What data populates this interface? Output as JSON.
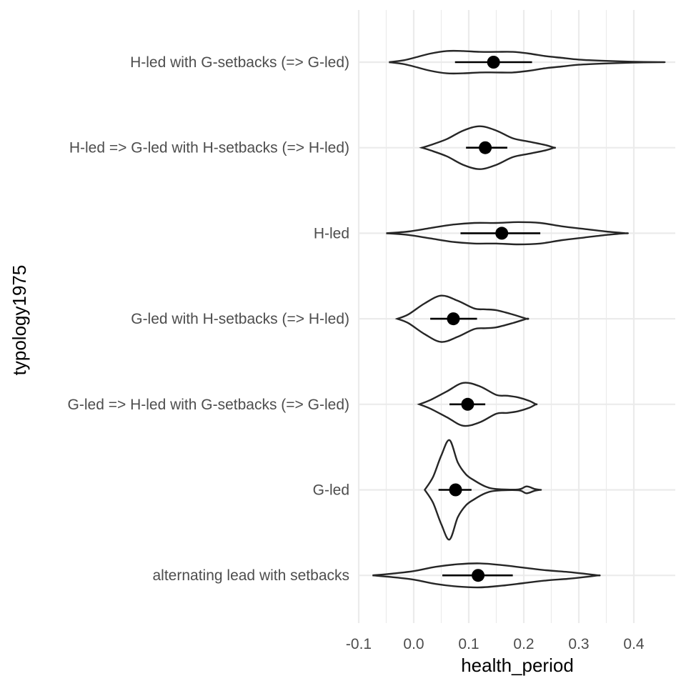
{
  "chart_data": {
    "type": "violin",
    "xlabel": "health_period",
    "ylabel": "typology1975",
    "xlim": [
      -0.1,
      0.45
    ],
    "x_ticks": [
      -0.1,
      0.0,
      0.1,
      0.2,
      0.3,
      0.4
    ],
    "x_tick_labels": [
      "-0.1",
      "0.0",
      "0.1",
      "0.2",
      "0.3",
      "0.4"
    ],
    "grid": true,
    "colors": {
      "outline": "#262626",
      "point": "#000000",
      "grid": "#ebebeb"
    },
    "categories": [
      {
        "label": "H-led with G-setbacks (=> G-led)",
        "mean": 0.145,
        "ci": [
          0.075,
          0.215
        ],
        "range": [
          -0.045,
          0.45
        ],
        "profile": [
          [
            -0.045,
            0.0
          ],
          [
            -0.02,
            0.02
          ],
          [
            0.0,
            0.05
          ],
          [
            0.03,
            0.1
          ],
          [
            0.06,
            0.13
          ],
          [
            0.09,
            0.13
          ],
          [
            0.12,
            0.12
          ],
          [
            0.15,
            0.12
          ],
          [
            0.18,
            0.12
          ],
          [
            0.21,
            0.1
          ],
          [
            0.24,
            0.07
          ],
          [
            0.27,
            0.05
          ],
          [
            0.3,
            0.03
          ],
          [
            0.35,
            0.015
          ],
          [
            0.4,
            0.005
          ],
          [
            0.45,
            0.0
          ]
        ]
      },
      {
        "label": "H-led => G-led with H-setbacks (=> H-led)",
        "mean": 0.13,
        "ci": [
          0.095,
          0.17
        ],
        "range": [
          0.015,
          0.255
        ],
        "profile": [
          [
            0.015,
            0.0
          ],
          [
            0.03,
            0.03
          ],
          [
            0.06,
            0.1
          ],
          [
            0.09,
            0.2
          ],
          [
            0.12,
            0.25
          ],
          [
            0.15,
            0.2
          ],
          [
            0.18,
            0.11
          ],
          [
            0.21,
            0.07
          ],
          [
            0.24,
            0.03
          ],
          [
            0.255,
            0.0
          ]
        ]
      },
      {
        "label": "H-led",
        "mean": 0.16,
        "ci": [
          0.085,
          0.23
        ],
        "range": [
          -0.05,
          0.385
        ],
        "profile": [
          [
            -0.05,
            0.0
          ],
          [
            -0.01,
            0.02
          ],
          [
            0.03,
            0.06
          ],
          [
            0.07,
            0.1
          ],
          [
            0.11,
            0.12
          ],
          [
            0.15,
            0.12
          ],
          [
            0.19,
            0.13
          ],
          [
            0.23,
            0.12
          ],
          [
            0.27,
            0.08
          ],
          [
            0.31,
            0.05
          ],
          [
            0.35,
            0.02
          ],
          [
            0.385,
            0.0
          ]
        ]
      },
      {
        "label": "G-led with H-setbacks (=> H-led)",
        "mean": 0.072,
        "ci": [
          0.03,
          0.115
        ],
        "range": [
          -0.03,
          0.205
        ],
        "profile": [
          [
            -0.03,
            0.0
          ],
          [
            -0.01,
            0.05
          ],
          [
            0.02,
            0.18
          ],
          [
            0.05,
            0.27
          ],
          [
            0.08,
            0.21
          ],
          [
            0.11,
            0.12
          ],
          [
            0.13,
            0.11
          ],
          [
            0.15,
            0.1
          ],
          [
            0.18,
            0.05
          ],
          [
            0.205,
            0.0
          ]
        ]
      },
      {
        "label": "G-led => H-led with G-setbacks (=> G-led)",
        "mean": 0.098,
        "ci": [
          0.065,
          0.13
        ],
        "range": [
          0.01,
          0.222
        ],
        "profile": [
          [
            0.01,
            0.0
          ],
          [
            0.03,
            0.05
          ],
          [
            0.06,
            0.15
          ],
          [
            0.09,
            0.25
          ],
          [
            0.12,
            0.21
          ],
          [
            0.15,
            0.11
          ],
          [
            0.17,
            0.1
          ],
          [
            0.19,
            0.08
          ],
          [
            0.21,
            0.04
          ],
          [
            0.222,
            0.0
          ]
        ]
      },
      {
        "label": "G-led",
        "mean": 0.076,
        "ci": [
          0.045,
          0.105
        ],
        "range": [
          0.02,
          0.23
        ],
        "profile": [
          [
            0.02,
            0.0
          ],
          [
            0.035,
            0.15
          ],
          [
            0.05,
            0.4
          ],
          [
            0.065,
            0.58
          ],
          [
            0.08,
            0.32
          ],
          [
            0.095,
            0.18
          ],
          [
            0.11,
            0.11
          ],
          [
            0.13,
            0.04
          ],
          [
            0.15,
            0.01
          ],
          [
            0.19,
            0.005
          ],
          [
            0.205,
            0.04
          ],
          [
            0.22,
            0.01
          ],
          [
            0.23,
            0.0
          ]
        ]
      },
      {
        "label": "alternating lead with setbacks",
        "mean": 0.117,
        "ci": [
          0.052,
          0.18
        ],
        "range": [
          -0.075,
          0.335
        ],
        "profile": [
          [
            -0.075,
            0.0
          ],
          [
            -0.04,
            0.02
          ],
          [
            0.0,
            0.05
          ],
          [
            0.04,
            0.1
          ],
          [
            0.08,
            0.13
          ],
          [
            0.12,
            0.14
          ],
          [
            0.16,
            0.12
          ],
          [
            0.2,
            0.09
          ],
          [
            0.24,
            0.06
          ],
          [
            0.28,
            0.04
          ],
          [
            0.31,
            0.02
          ],
          [
            0.335,
            0.0
          ]
        ]
      }
    ]
  }
}
